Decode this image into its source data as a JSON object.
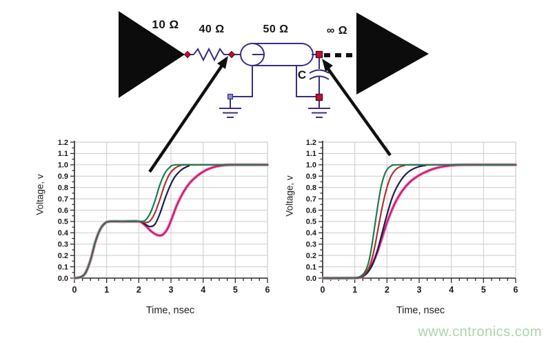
{
  "colors": {
    "wire": "#3a2d80",
    "node": "#c11236",
    "node_alt": "#8093c8",
    "arrow": "#101010",
    "triangle": "#0c0c0c",
    "grid": "#cccccc",
    "axis": "#2b2b2b",
    "tick_text": "#1a1a1a",
    "watermark": "#a9d5aa"
  },
  "circuit": {
    "source_label": "10 Ω",
    "series_resistor_label": "40 Ω",
    "line_label": "50 Ω",
    "load_label": "∞ Ω",
    "capacitor_label": "C"
  },
  "watermark": {
    "text": "www.cntronics.com"
  },
  "chart_data": [
    {
      "type": "line",
      "position": "left",
      "title": "",
      "xlabel": "Time,  nsec",
      "ylabel": "Voltage, v",
      "xlim": [
        0,
        6
      ],
      "ylim": [
        0,
        1.2
      ],
      "grid": true,
      "legend": false,
      "xticks": [
        0,
        1,
        2,
        3,
        4,
        5,
        6
      ],
      "xtick_labels": [
        "0",
        "1",
        "2",
        "3",
        "4",
        "5",
        "6"
      ],
      "yticks": [
        0,
        0.1,
        0.2,
        0.3,
        0.4,
        0.5,
        0.6,
        0.7,
        0.8,
        0.9,
        1.0,
        1.1,
        1.2
      ],
      "ytick_labels": [
        "0.0",
        "0.1",
        "0.2",
        "0.3",
        "0.4",
        "0.5",
        "0.6",
        "0.7",
        "0.8",
        "0.9",
        "1.0",
        "1.1",
        "1.2"
      ],
      "series": [
        {
          "name": "magenta",
          "color": "#bf1d6a",
          "halo": "#f592c9",
          "points": [
            [
              0,
              0
            ],
            [
              0.2,
              0.01
            ],
            [
              0.35,
              0.05
            ],
            [
              0.5,
              0.16
            ],
            [
              0.65,
              0.32
            ],
            [
              0.8,
              0.43
            ],
            [
              0.95,
              0.485
            ],
            [
              1.1,
              0.5
            ],
            [
              1.5,
              0.5
            ],
            [
              2.0,
              0.5
            ],
            [
              2.2,
              0.465
            ],
            [
              2.4,
              0.41
            ],
            [
              2.6,
              0.378
            ],
            [
              2.75,
              0.385
            ],
            [
              2.9,
              0.44
            ],
            [
              3.05,
              0.545
            ],
            [
              3.2,
              0.655
            ],
            [
              3.4,
              0.765
            ],
            [
              3.6,
              0.845
            ],
            [
              3.85,
              0.91
            ],
            [
              4.1,
              0.955
            ],
            [
              4.4,
              0.985
            ],
            [
              4.7,
              0.998
            ],
            [
              5.0,
              1.0
            ],
            [
              6,
              1.0
            ]
          ]
        },
        {
          "name": "navy",
          "color": "#1c1c49",
          "points": [
            [
              0,
              0
            ],
            [
              0.2,
              0.01
            ],
            [
              0.35,
              0.05
            ],
            [
              0.5,
              0.16
            ],
            [
              0.65,
              0.32
            ],
            [
              0.8,
              0.43
            ],
            [
              0.95,
              0.485
            ],
            [
              1.1,
              0.5
            ],
            [
              1.5,
              0.5
            ],
            [
              2.0,
              0.5
            ],
            [
              2.2,
              0.475
            ],
            [
              2.35,
              0.455
            ],
            [
              2.5,
              0.475
            ],
            [
              2.65,
              0.565
            ],
            [
              2.8,
              0.69
            ],
            [
              2.95,
              0.8
            ],
            [
              3.1,
              0.885
            ],
            [
              3.3,
              0.95
            ],
            [
              3.55,
              0.99
            ],
            [
              3.8,
              1.0
            ],
            [
              6,
              1.0
            ]
          ]
        },
        {
          "name": "red",
          "color": "#aa3333",
          "points": [
            [
              0,
              0
            ],
            [
              0.2,
              0.01
            ],
            [
              0.35,
              0.05
            ],
            [
              0.5,
              0.16
            ],
            [
              0.65,
              0.32
            ],
            [
              0.8,
              0.43
            ],
            [
              0.95,
              0.485
            ],
            [
              1.1,
              0.5
            ],
            [
              1.5,
              0.5
            ],
            [
              2.0,
              0.5
            ],
            [
              2.2,
              0.49
            ],
            [
              2.35,
              0.505
            ],
            [
              2.5,
              0.575
            ],
            [
              2.65,
              0.69
            ],
            [
              2.8,
              0.82
            ],
            [
              2.95,
              0.915
            ],
            [
              3.1,
              0.965
            ],
            [
              3.3,
              0.995
            ],
            [
              3.6,
              1.0
            ],
            [
              6,
              1.0
            ]
          ]
        },
        {
          "name": "green",
          "color": "#1f7a4d",
          "points": [
            [
              0,
              0
            ],
            [
              0.2,
              0.01
            ],
            [
              0.35,
              0.05
            ],
            [
              0.5,
              0.16
            ],
            [
              0.65,
              0.32
            ],
            [
              0.8,
              0.43
            ],
            [
              0.95,
              0.485
            ],
            [
              1.1,
              0.5
            ],
            [
              1.5,
              0.5
            ],
            [
              2.0,
              0.5
            ],
            [
              2.2,
              0.51
            ],
            [
              2.35,
              0.57
            ],
            [
              2.5,
              0.68
            ],
            [
              2.65,
              0.82
            ],
            [
              2.8,
              0.92
            ],
            [
              2.95,
              0.975
            ],
            [
              3.15,
              1.0
            ],
            [
              4.0,
              1.0
            ],
            [
              6,
              1.0
            ]
          ]
        }
      ]
    },
    {
      "type": "line",
      "position": "right",
      "title": "",
      "xlabel": "Time,  nsec",
      "ylabel": "Voltage, v",
      "xlim": [
        0,
        6
      ],
      "ylim": [
        0,
        1.2
      ],
      "grid": true,
      "legend": false,
      "xticks": [
        0,
        1,
        2,
        3,
        4,
        5,
        6
      ],
      "xtick_labels": [
        "0",
        "1",
        "2",
        "3",
        "4",
        "5",
        "6"
      ],
      "yticks": [
        0,
        0.1,
        0.2,
        0.3,
        0.4,
        0.5,
        0.6,
        0.7,
        0.8,
        0.9,
        1.0,
        1.1,
        1.2
      ],
      "ytick_labels": [
        "0.0",
        "0.1",
        "0.2",
        "0.3",
        "0.4",
        "0.5",
        "0.6",
        "0.7",
        "0.8",
        "0.9",
        "1.0",
        "1.1",
        "1.2"
      ],
      "series": [
        {
          "name": "magenta",
          "color": "#bf1d6a",
          "halo": "#f592c9",
          "points": [
            [
              0,
              0
            ],
            [
              0.6,
              0
            ],
            [
              1.1,
              0.003
            ],
            [
              1.25,
              0.02
            ],
            [
              1.4,
              0.06
            ],
            [
              1.55,
              0.13
            ],
            [
              1.7,
              0.23
            ],
            [
              1.85,
              0.36
            ],
            [
              2.0,
              0.49
            ],
            [
              2.15,
              0.6
            ],
            [
              2.3,
              0.69
            ],
            [
              2.5,
              0.78
            ],
            [
              2.7,
              0.845
            ],
            [
              2.9,
              0.89
            ],
            [
              3.15,
              0.93
            ],
            [
              3.45,
              0.965
            ],
            [
              3.75,
              0.985
            ],
            [
              4.1,
              0.997
            ],
            [
              4.5,
              1.0
            ],
            [
              6,
              1.0
            ]
          ]
        },
        {
          "name": "navy",
          "color": "#1c1c49",
          "points": [
            [
              0,
              0
            ],
            [
              0.6,
              0
            ],
            [
              1.1,
              0.002
            ],
            [
              1.25,
              0.015
            ],
            [
              1.4,
              0.05
            ],
            [
              1.55,
              0.12
            ],
            [
              1.7,
              0.24
            ],
            [
              1.85,
              0.4
            ],
            [
              2.0,
              0.56
            ],
            [
              2.15,
              0.7
            ],
            [
              2.3,
              0.8
            ],
            [
              2.5,
              0.89
            ],
            [
              2.7,
              0.945
            ],
            [
              2.95,
              0.98
            ],
            [
              3.2,
              0.995
            ],
            [
              3.5,
              1.0
            ],
            [
              6,
              1.0
            ]
          ]
        },
        {
          "name": "red",
          "color": "#aa3333",
          "points": [
            [
              0,
              0
            ],
            [
              0.6,
              0
            ],
            [
              1.05,
              0.002
            ],
            [
              1.2,
              0.012
            ],
            [
              1.35,
              0.05
            ],
            [
              1.48,
              0.12
            ],
            [
              1.6,
              0.25
            ],
            [
              1.72,
              0.43
            ],
            [
              1.84,
              0.61
            ],
            [
              1.96,
              0.76
            ],
            [
              2.08,
              0.87
            ],
            [
              2.2,
              0.935
            ],
            [
              2.35,
              0.975
            ],
            [
              2.55,
              0.995
            ],
            [
              2.8,
              1.0
            ],
            [
              6,
              1.0
            ]
          ]
        },
        {
          "name": "green",
          "color": "#1f7a4d",
          "points": [
            [
              0,
              0
            ],
            [
              0.6,
              0
            ],
            [
              1.0,
              0.002
            ],
            [
              1.15,
              0.012
            ],
            [
              1.3,
              0.05
            ],
            [
              1.42,
              0.13
            ],
            [
              1.52,
              0.27
            ],
            [
              1.62,
              0.46
            ],
            [
              1.72,
              0.65
            ],
            [
              1.82,
              0.81
            ],
            [
              1.92,
              0.91
            ],
            [
              2.02,
              0.965
            ],
            [
              2.15,
              0.992
            ],
            [
              2.35,
              1.0
            ],
            [
              4.0,
              1.0
            ],
            [
              6,
              1.0
            ]
          ]
        }
      ]
    }
  ]
}
